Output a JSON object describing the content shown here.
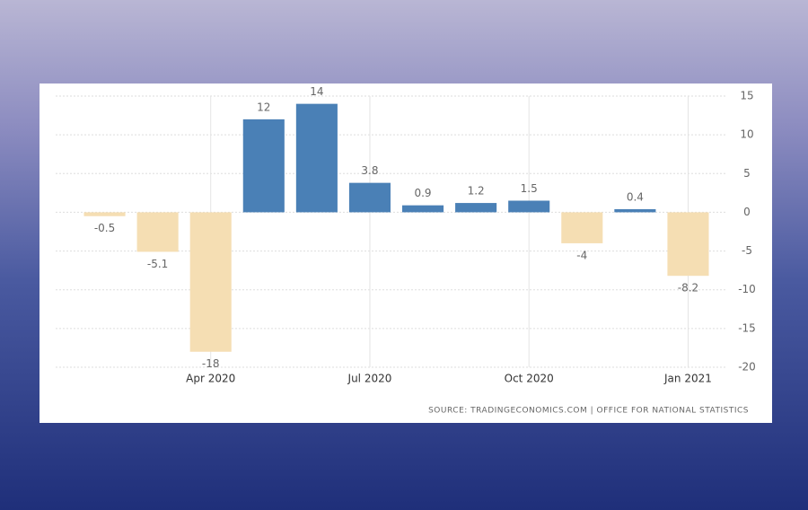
{
  "chart_data": {
    "type": "bar",
    "categories": [
      null,
      null,
      "Apr 2020",
      null,
      null,
      "Jul 2020",
      null,
      null,
      "Oct 2020",
      null,
      null,
      "Jan 2021"
    ],
    "values": [
      -0.5,
      -5.1,
      -18,
      12,
      14,
      3.8,
      0.9,
      1.2,
      1.5,
      -4,
      0.4,
      -8.2
    ],
    "positive_color": "#4a80b6",
    "negative_color": "#f5deb3",
    "ylim": [
      -20,
      15
    ],
    "yticks": [
      -20,
      -15,
      -10,
      -5,
      0,
      5,
      10,
      15
    ],
    "grid": true,
    "source": "SOURCE: TRADINGECONOMICS.COM | OFFICE FOR NATIONAL STATISTICS"
  }
}
